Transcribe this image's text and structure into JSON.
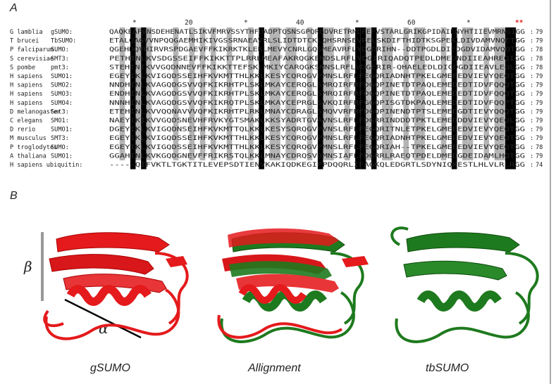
{
  "panel_a": {
    "letter": "A",
    "ruler": {
      "stars": "*",
      "n20": "20",
      "n40": "40",
      "n60": "60",
      "red_stars": "**"
    },
    "rows": [
      {
        "organism": "G lamblia",
        "protein": "gSUMO:",
        "seq": "QAQKEAFVNSDEHENATLSIKVFMRVSSYTHFDADPTQSNSGPQRGDVRETRNLPEFVSTARLGRIKGPIDAIENYHTIIEVMRNGIGG",
        "len": "79"
      },
      {
        "organism": "T brucei",
        "protein": "TbSUMO:",
        "seq": "ETALQAGVVNPQQGAEMHIKIVGSSRNAEAVRLSLIDTDTCKLQHSRNSEVRELSKDIFTHIDTKSGPEKLDIVDAMVNQETGG",
        "len": "79"
      },
      {
        "organism": "P falciparum",
        "protein": "SUMO:",
        "seq": "QGEHDQVHIRVRSPDGAEVFFKIKRKTKLEKLMEVYCNRLGQSMEAVRFLYDGDRIHN--DDTPGDLDIEDGDVIDAMVQQTGG",
        "len": "78"
      },
      {
        "organism": "S cerevisiae",
        "protein": "SMT3:",
        "seq": "PETHINLKVSDGSSEIFFKIKKTTPLRRLMEAFAKRQGKEMDSLRFLYDGIRIQADQTPEDLDMEDNDIIEAHREQIGG",
        "len": "78"
      },
      {
        "organism": "S pombe",
        "protein": "pmt3:",
        "seq": "STEHINIKVVGQDNNEVFFKIKKTTEFSKLMKIYCARQGKSMNSLRFLVDGERIR-QHAELEDLDIGDGDIIEAVLEQLGG",
        "len": "78"
      },
      {
        "organism": "H sapiens",
        "protein": "SUMO1:",
        "seq": "EGEYIKLKVIGQDSSEIHFKVKMTTHLKKLKESYCQRQGVPMNSLRFLFEGQRIADNHTPKELGMEEEDVIEVYQEQTGG",
        "len": "79"
      },
      {
        "organism": "H sapiens",
        "protein": "SUMO2:",
        "seq": "NNDHINLKVAGQDGSVVQFKIKRHTPLSKLMKAYCERQGLSMRQIRFRFDGQPINETDTPAQLEMEDEDTIDVFQQQTGG",
        "len": "79"
      },
      {
        "organism": "H sapiens",
        "protein": "SUMO3:",
        "seq": "ENDHINLKVAGQDGSVVQFKIKRHTPLSKLMKAYCERQGLSMRQIRFRFDGQPINETDTPAQLEMEDEDTIDVFQQQTGG",
        "len": "79"
      },
      {
        "organism": "H sapiens",
        "protein": "SUMO4:",
        "seq": "NNNHINLKVAGQDGSVVQFKIKRQTPLSKLMKAYCEPRGLSVKQIRFRFGGQPISGTDKPAQLEMEDEDTIDVFQQPTGG",
        "len": "79"
      },
      {
        "organism": "D melanogaster",
        "protein": "Smt3:",
        "seq": "ETEHINLKVVQQNAVVVQFKIKRHTPLRKLMNAYCDRAGLSMQVVRFRFDGQPINENDTPTSLEMEEGDTIEVYQQQTGG",
        "len": "79"
      },
      {
        "organism": "C elegans",
        "protein": "SMO1:",
        "seq": "NAEYIKIKVVGQDSNEVHFRVKYGTSMAKLKKSYADRTGVAVNSLRFLFDGRRINDDDTPKTLEMEDDDVIEVYQEQLGG",
        "len": "79"
      },
      {
        "organism": "D rerio",
        "protein": "SUMO1:",
        "seq": "DGEYIKLKVIGQDNSEIHFKVKMTTQLKKLKESYSQRQGVPVNSLRFLFEGQRITNLETPKELGMEEEDVIEVYQEQTGG",
        "len": "79"
      },
      {
        "organism": "M musculus",
        "protein": "SMT3:",
        "seq": "EGEYIKLKVIGQDSSEIHFKVKMTTHLKKLKESYCQRQGVPMNSLRFLFEGQRIADNHTPKELGMEEEDVIEVYQEQTGG",
        "len": "79"
      },
      {
        "organism": "P troglodytes",
        "protein": "SUMO:",
        "seq": "EGEYIKLKVIGQDSSEIHFKVKMTTHLKKLKESYCQRQGVPMNSLRFLFEGQRIAH--TPKELGMEEEDVIEVYQEQTGG",
        "len": "78"
      },
      {
        "organism": "A thaliana",
        "protein": "SUMO1:",
        "seq": "GGAHINLKVKGQDGNEVFFRIKRSTQLKKLMNAYCDRQSVDMNSIAFLFDGRRLRAEQTPDELDMEDGDEIDAMLHQTGG",
        "len": "79"
      },
      {
        "organism": "H sapiens ubiquitin:",
        "protein": "",
        "seq": "-----QIFVKTLTGKTITLEVEPSDTIENVKAKIQDKEGIPPDQQRLIFAGKQLEDGRTLSDYNIQKESTLHLVLRLRGG",
        "len": "74"
      }
    ]
  },
  "panel_b": {
    "letter": "B",
    "beta_label": "β",
    "alpha_label": "α",
    "labels": {
      "left": "gSUMO",
      "middle": "Allignment",
      "right": "tbSUMO"
    },
    "colors": {
      "gsumo": "#e41a1c",
      "tbsumo": "#1e7a1e",
      "conserved_black": "#000000",
      "conserved_grey": "#a8a8a8",
      "red_star": "#e41a1c"
    }
  }
}
